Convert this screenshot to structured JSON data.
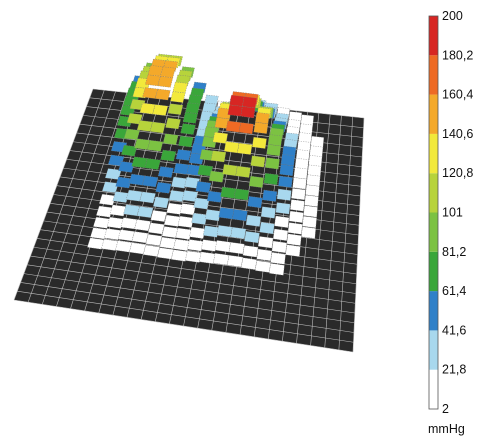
{
  "chart_data": {
    "type": "heatmap",
    "title": "",
    "xlabel": "",
    "ylabel": "",
    "unit": "mmHg",
    "colorbar": {
      "bands": [
        {
          "from": 2,
          "to": 21.8,
          "color": "#ffffff"
        },
        {
          "from": 21.8,
          "to": 41.6,
          "color": "#a8d8ee"
        },
        {
          "from": 41.6,
          "to": 61.4,
          "color": "#2f80c8"
        },
        {
          "from": 61.4,
          "to": 81.2,
          "color": "#3aa63a"
        },
        {
          "from": 81.2,
          "to": 101,
          "color": "#7cc242"
        },
        {
          "from": 101,
          "to": 120.8,
          "color": "#b7d33b"
        },
        {
          "from": 120.8,
          "to": 140.6,
          "color": "#f2e93b"
        },
        {
          "from": 140.6,
          "to": 160.4,
          "color": "#f4a92a"
        },
        {
          "from": 160.4,
          "to": 180.2,
          "color": "#ee6a24"
        },
        {
          "from": 180.2,
          "to": 200,
          "color": "#d72623"
        }
      ],
      "tick_labels": [
        "200",
        "180,2",
        "160,4",
        "140,6",
        "120,8",
        "101",
        "81,2",
        "61,4",
        "41,6",
        "21,8",
        "2"
      ],
      "min": 2,
      "max": 200
    },
    "surface": {
      "description_of_shape": "pressure map with two elevated lobes",
      "grid_rows": 16,
      "grid_cols": 16,
      "peaks": [
        {
          "row": 7,
          "col": 10,
          "value": 190
        },
        {
          "row": 4,
          "col": 3,
          "value": 165
        }
      ],
      "max_value_shown": 200
    }
  }
}
